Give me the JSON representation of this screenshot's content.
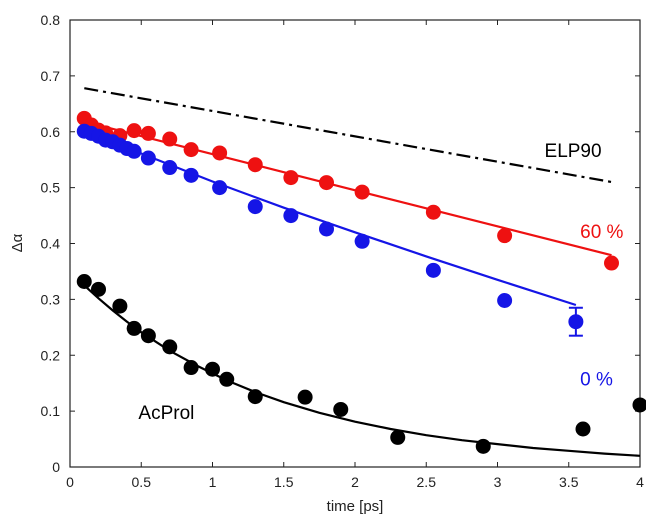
{
  "chart_data": {
    "type": "scatter",
    "xlabel": "time [ps]",
    "ylabel": "Δα",
    "xlim": [
      0,
      4
    ],
    "ylim": [
      0,
      0.8
    ],
    "xticks": [
      "0",
      "0.5",
      "1",
      "1.5",
      "2",
      "2.5",
      "3",
      "3.5",
      "4"
    ],
    "yticks": [
      "0",
      "0.1",
      "0.2",
      "0.3",
      "0.4",
      "0.5",
      "0.6",
      "0.7",
      "0.8"
    ],
    "grid": false,
    "series": [
      {
        "name": "60 %",
        "color": "#ee1111",
        "points": [
          [
            0.1,
            0.624
          ],
          [
            0.15,
            0.612
          ],
          [
            0.2,
            0.603
          ],
          [
            0.25,
            0.598
          ],
          [
            0.35,
            0.593
          ],
          [
            0.45,
            0.602
          ],
          [
            0.55,
            0.597
          ],
          [
            0.7,
            0.587
          ],
          [
            0.85,
            0.568
          ],
          [
            1.05,
            0.562
          ],
          [
            1.3,
            0.541
          ],
          [
            1.55,
            0.518
          ],
          [
            1.8,
            0.509
          ],
          [
            2.05,
            0.492
          ],
          [
            2.55,
            0.456
          ],
          [
            3.05,
            0.414
          ],
          [
            3.8,
            0.365
          ]
        ],
        "fit": [
          [
            0.1,
            0.618
          ],
          [
            3.8,
            0.379
          ]
        ]
      },
      {
        "name": "0 %",
        "color": "#1515e6",
        "points": [
          [
            0.1,
            0.601
          ],
          [
            0.15,
            0.597
          ],
          [
            0.2,
            0.592
          ],
          [
            0.25,
            0.585
          ],
          [
            0.3,
            0.582
          ],
          [
            0.35,
            0.576
          ],
          [
            0.4,
            0.57
          ],
          [
            0.45,
            0.565
          ],
          [
            0.55,
            0.553
          ],
          [
            0.7,
            0.536
          ],
          [
            0.85,
            0.522
          ],
          [
            1.05,
            0.5
          ],
          [
            1.3,
            0.466
          ],
          [
            1.55,
            0.45
          ],
          [
            1.8,
            0.426
          ],
          [
            2.05,
            0.404
          ],
          [
            2.55,
            0.352
          ],
          [
            3.05,
            0.298
          ],
          [
            3.55,
            0.26
          ]
        ],
        "fit": [
          [
            0.1,
            0.6
          ],
          [
            0.5,
            0.561
          ],
          [
            1.0,
            0.511
          ],
          [
            1.5,
            0.464
          ],
          [
            2.0,
            0.42
          ],
          [
            2.5,
            0.377
          ],
          [
            3.0,
            0.335
          ],
          [
            3.55,
            0.29
          ]
        ],
        "error_bar": {
          "x": 3.55,
          "y": 0.26,
          "low": 0.235,
          "high": 0.285
        }
      },
      {
        "name": "AcProl",
        "color": "#000000",
        "points": [
          [
            0.1,
            0.332
          ],
          [
            0.2,
            0.318
          ],
          [
            0.35,
            0.288
          ],
          [
            0.45,
            0.248
          ],
          [
            0.55,
            0.235
          ],
          [
            0.7,
            0.215
          ],
          [
            0.85,
            0.178
          ],
          [
            1.0,
            0.175
          ],
          [
            1.1,
            0.157
          ],
          [
            1.3,
            0.126
          ],
          [
            1.65,
            0.125
          ],
          [
            1.9,
            0.103
          ],
          [
            2.3,
            0.053
          ],
          [
            2.9,
            0.037
          ],
          [
            3.6,
            0.068
          ],
          [
            4.0,
            0.111
          ]
        ],
        "fit": [
          [
            0.1,
            0.325
          ],
          [
            0.2,
            0.302
          ],
          [
            0.3,
            0.28
          ],
          [
            0.4,
            0.26
          ],
          [
            0.5,
            0.241
          ],
          [
            0.7,
            0.208
          ],
          [
            0.9,
            0.18
          ],
          [
            1.1,
            0.155
          ],
          [
            1.3,
            0.134
          ],
          [
            1.5,
            0.116
          ],
          [
            1.75,
            0.097
          ],
          [
            2.0,
            0.081
          ],
          [
            2.25,
            0.068
          ],
          [
            2.5,
            0.057
          ],
          [
            2.75,
            0.048
          ],
          [
            3.0,
            0.041
          ],
          [
            3.25,
            0.034
          ],
          [
            3.5,
            0.029
          ],
          [
            3.75,
            0.024
          ],
          [
            4.0,
            0.02
          ]
        ]
      },
      {
        "name": "ELP90",
        "color": "#000000",
        "style": "dash-dot",
        "fit": [
          [
            0.1,
            0.678
          ],
          [
            3.8,
            0.51
          ]
        ]
      }
    ],
    "annotations": [
      {
        "text": "ELP90",
        "color": "#000000",
        "x": 3.33,
        "y": 0.555
      },
      {
        "text": "60 %",
        "color": "#ee1111",
        "x": 3.58,
        "y": 0.41
      },
      {
        "text": "0 %",
        "color": "#1515e6",
        "x": 3.58,
        "y": 0.146
      },
      {
        "text": "AcProl",
        "color": "#000000",
        "x": 0.48,
        "y": 0.086
      }
    ]
  }
}
